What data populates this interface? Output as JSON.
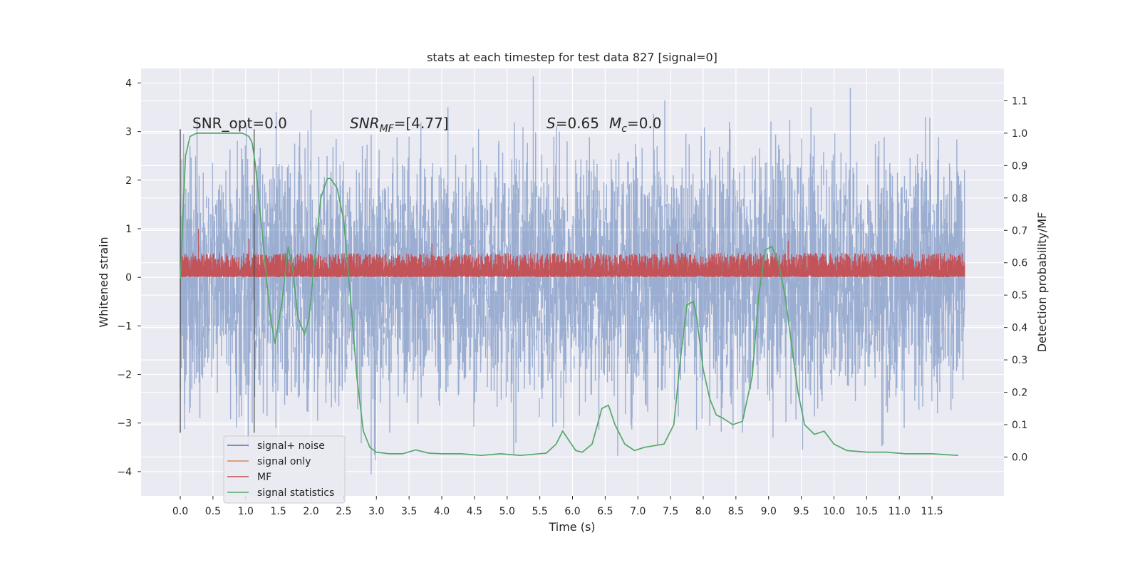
{
  "chart_data": {
    "type": "line",
    "title": "stats at each timestep for test data 827 [signal=0]",
    "xlabel": "Time (s)",
    "ylabel": "Whitened strain",
    "y2label": "Detection probability/MF",
    "xlim": [
      -0.6,
      12.6
    ],
    "ylim": [
      -4.5,
      4.3
    ],
    "y2lim": [
      -0.12,
      1.2
    ],
    "xticks": [
      "0.0",
      "0.5",
      "1.0",
      "1.5",
      "2.0",
      "2.5",
      "3.0",
      "3.5",
      "4.0",
      "4.5",
      "5.0",
      "5.5",
      "6.0",
      "6.5",
      "7.0",
      "7.5",
      "8.0",
      "8.5",
      "9.0",
      "9.5",
      "10.0",
      "10.5",
      "11.0",
      "11.5"
    ],
    "yticks": [
      "4",
      "3",
      "2",
      "1",
      "0",
      "−1",
      "−2",
      "−3",
      "−4"
    ],
    "y2ticks": [
      "1.1",
      "1.0",
      "0.9",
      "0.8",
      "0.7",
      "0.6",
      "0.5",
      "0.4",
      "0.3",
      "0.2",
      "0.1",
      "0.0"
    ],
    "grid": true,
    "legend_position": "lower-left",
    "annotations": {
      "snr_opt": "SNR_opt=0.0",
      "snr_mf_prefix": "SNR",
      "snr_mf_sub": "MF",
      "snr_mf_value": "=[4.77]",
      "s_prefix": "S",
      "s_value": "=0.65",
      "mc_prefix": "M",
      "mc_sub": "c",
      "mc_value": "=0.0"
    },
    "vertical_markers_x": [
      0.0,
      1.13
    ],
    "series": [
      {
        "name": "signal+ noise",
        "color": "#4c72b0",
        "kind": "noise-band",
        "x_range": [
          0.0,
          12.0
        ],
        "typical_range": [
          -2.2,
          2.3
        ],
        "extremes": [
          {
            "x": 0.05,
            "y": 2.95
          },
          {
            "x": 0.3,
            "y": -2.9
          },
          {
            "x": 1.1,
            "y": -3.0
          },
          {
            "x": 1.75,
            "y": 2.75
          },
          {
            "x": 2.0,
            "y": 3.45
          },
          {
            "x": 2.92,
            "y": -4.05
          },
          {
            "x": 2.97,
            "y": -3.65
          },
          {
            "x": 3.5,
            "y": 2.9
          },
          {
            "x": 5.1,
            "y": -3.65
          },
          {
            "x": 5.8,
            "y": 3.0
          },
          {
            "x": 7.3,
            "y": -3.45
          },
          {
            "x": 8.4,
            "y": 3.2
          },
          {
            "x": 8.6,
            "y": -3.2
          },
          {
            "x": 9.52,
            "y": -3.55
          },
          {
            "x": 10.25,
            "y": 3.9
          },
          {
            "x": 10.75,
            "y": -3.45
          },
          {
            "x": 11.4,
            "y": 3.3
          }
        ]
      },
      {
        "name": "signal only",
        "color": "#dd8452",
        "kind": "line",
        "x": [],
        "y": []
      },
      {
        "name": "MF",
        "color": "#c44e52",
        "kind": "positive-band",
        "x_range": [
          0.0,
          12.0
        ],
        "typical_range": [
          0.05,
          0.5
        ],
        "peaks": [
          {
            "x": 0.28,
            "y": 1.0
          },
          {
            "x": 1.05,
            "y": 0.8
          },
          {
            "x": 3.85,
            "y": 0.7
          },
          {
            "x": 7.6,
            "y": 0.7
          },
          {
            "x": 9.3,
            "y": 0.75
          }
        ]
      },
      {
        "name": "signal statistics",
        "color": "#55a868",
        "kind": "line",
        "axis": "y2",
        "x": [
          0.0,
          0.08,
          0.15,
          0.25,
          0.4,
          0.6,
          0.8,
          0.95,
          1.05,
          1.1,
          1.15,
          1.25,
          1.32,
          1.38,
          1.45,
          1.55,
          1.65,
          1.72,
          1.8,
          1.9,
          1.97,
          2.05,
          2.15,
          2.25,
          2.3,
          2.4,
          2.5,
          2.6,
          2.7,
          2.8,
          2.9,
          3.0,
          3.2,
          3.4,
          3.6,
          3.8,
          4.0,
          4.3,
          4.6,
          4.9,
          5.2,
          5.6,
          5.75,
          5.85,
          5.95,
          6.05,
          6.15,
          6.3,
          6.45,
          6.55,
          6.65,
          6.8,
          6.95,
          7.1,
          7.25,
          7.4,
          7.55,
          7.65,
          7.75,
          7.85,
          7.9,
          8.0,
          8.1,
          8.2,
          8.3,
          8.45,
          8.6,
          8.75,
          8.85,
          8.95,
          9.05,
          9.15,
          9.25,
          9.35,
          9.45,
          9.55,
          9.7,
          9.85,
          10.0,
          10.2,
          10.5,
          10.8,
          11.1,
          11.5,
          11.9
        ],
        "y": [
          0.55,
          0.93,
          0.99,
          1.0,
          1.0,
          1.0,
          1.0,
          1.0,
          0.99,
          0.97,
          0.9,
          0.7,
          0.55,
          0.43,
          0.35,
          0.47,
          0.65,
          0.58,
          0.43,
          0.38,
          0.43,
          0.6,
          0.8,
          0.86,
          0.86,
          0.83,
          0.73,
          0.5,
          0.25,
          0.08,
          0.03,
          0.015,
          0.01,
          0.01,
          0.022,
          0.012,
          0.01,
          0.01,
          0.005,
          0.01,
          0.005,
          0.012,
          0.04,
          0.08,
          0.05,
          0.02,
          0.015,
          0.04,
          0.15,
          0.16,
          0.1,
          0.04,
          0.02,
          0.03,
          0.035,
          0.04,
          0.1,
          0.3,
          0.47,
          0.48,
          0.43,
          0.27,
          0.18,
          0.13,
          0.12,
          0.1,
          0.11,
          0.25,
          0.5,
          0.64,
          0.65,
          0.6,
          0.5,
          0.35,
          0.2,
          0.1,
          0.07,
          0.08,
          0.04,
          0.02,
          0.015,
          0.015,
          0.01,
          0.01,
          0.005
        ]
      }
    ]
  }
}
